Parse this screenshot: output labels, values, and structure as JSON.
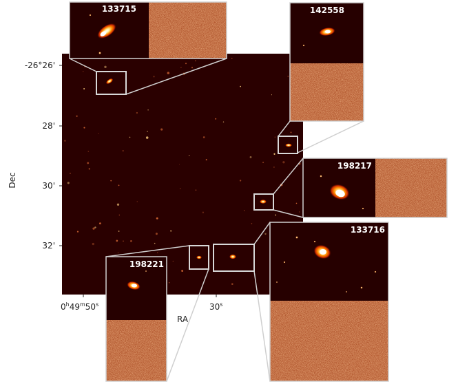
{
  "axes": {
    "ylabel": "Dec",
    "xlabel": "RA",
    "y_ticks": [
      "-26°26'",
      "28'",
      "30'",
      "32'"
    ],
    "x_ticks": [
      {
        "main": "0",
        "h": "h",
        "min": "49",
        "m": "m",
        "sec": "50",
        "s": "s"
      },
      {
        "main": "",
        "h": "",
        "min": "",
        "m": "",
        "sec": "30",
        "s": "s"
      }
    ]
  },
  "insets": [
    {
      "id": "133715",
      "name": "inset-133715"
    },
    {
      "id": "142558",
      "name": "inset-142558"
    },
    {
      "id": "198217",
      "name": "inset-198217"
    },
    {
      "id": "133716",
      "name": "inset-133716"
    },
    {
      "id": "198221",
      "name": "inset-198221"
    }
  ],
  "colors": {
    "field_background": "#2a0000",
    "noise_base": "#c05a2a",
    "box_stroke": "#d0d0d0"
  }
}
